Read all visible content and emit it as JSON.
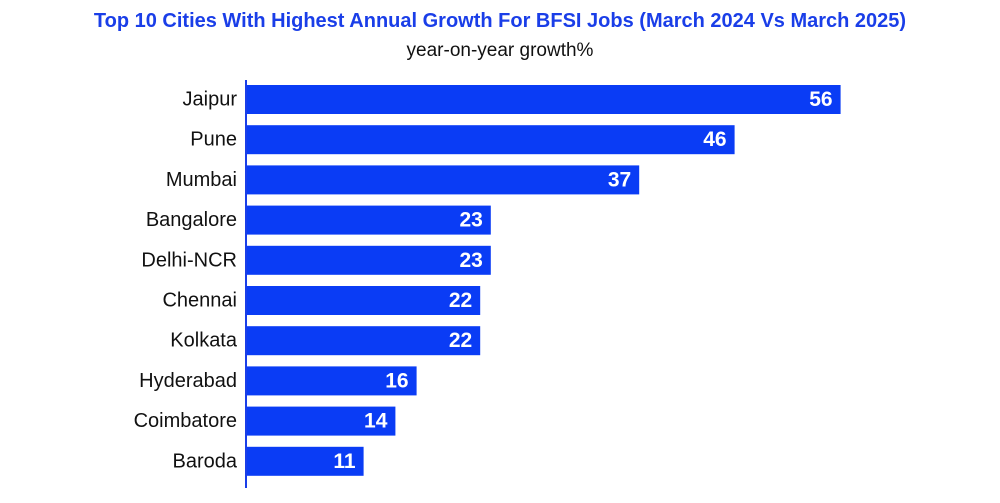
{
  "chart_data": {
    "type": "bar",
    "orientation": "horizontal",
    "title": "Top 10 Cities With Highest Annual Growth For BFSI Jobs (March 2024 Vs March 2025)",
    "subtitle": "year-on-year growth%",
    "xlabel": "",
    "ylabel": "",
    "categories": [
      "Jaipur",
      "Pune",
      "Mumbai",
      "Bangalore",
      "Delhi-NCR",
      "Chennai",
      "Kolkata",
      "Hyderabad",
      "Coimbatore",
      "Baroda"
    ],
    "values": [
      56,
      46,
      37,
      23,
      23,
      22,
      22,
      16,
      14,
      11
    ],
    "xlim": [
      0,
      60
    ],
    "grid": false,
    "legend": "none",
    "data_labels": true
  },
  "colors": {
    "bar": "#0a3cf5",
    "title": "#1a3ee8",
    "axis": "#1a3ee8",
    "value_label": "#ffffff",
    "category_label": "#111111"
  }
}
